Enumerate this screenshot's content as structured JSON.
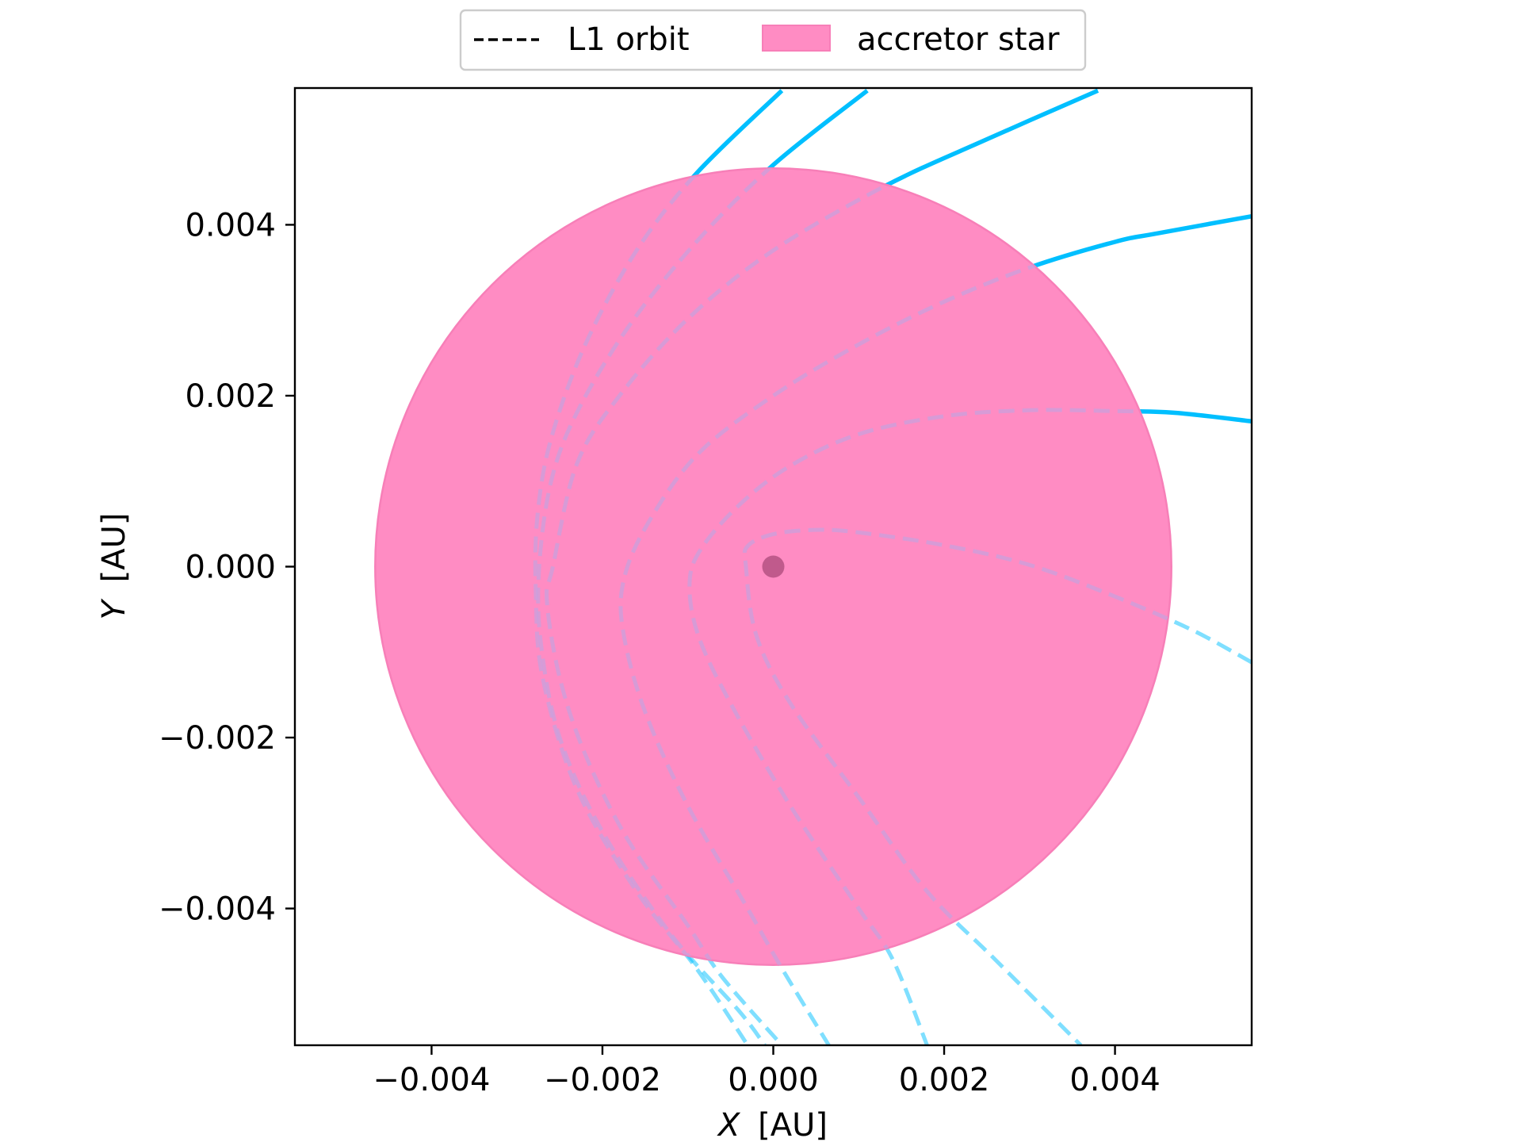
{
  "chart_data": {
    "type": "line",
    "xlabel_var": "X",
    "xlabel_unit": "[AU]",
    "ylabel_var": "Y",
    "ylabel_unit": "[AU]",
    "xlim": [
      -0.0056,
      0.0056
    ],
    "ylim": [
      -0.0056,
      0.0056
    ],
    "xticks": [
      -0.004,
      -0.002,
      0.0,
      0.002,
      0.004
    ],
    "xtick_labels": [
      "−0.004",
      "−0.002",
      "0.000",
      "0.002",
      "0.004"
    ],
    "yticks": [
      0.004,
      0.002,
      0.0,
      -0.002,
      -0.004
    ],
    "ytick_labels": [
      "0.004",
      "0.002",
      "0.000",
      "−0.002",
      "−0.004"
    ],
    "grid": false,
    "legend": {
      "placement": "top-center",
      "entries": [
        {
          "label": "L1 orbit",
          "style": "dashed-line",
          "color": "#000000"
        },
        {
          "label": "accretor star",
          "style": "patch",
          "color": "#ff8cc3"
        }
      ]
    },
    "accretor_star": {
      "center": [
        0.0,
        0.0
      ],
      "radius": 0.00466,
      "fill_color": "#ff8cc3",
      "edge_color": "#f77fb8"
    },
    "accretor_center_marker": {
      "x": 0.0,
      "y": 0.0,
      "color": "#c05a8c"
    },
    "orbit_color": "#00bfff",
    "series": [
      {
        "points": [
          [
            0.0056,
            -0.00112
          ],
          [
            0.0049,
            -0.00074
          ],
          [
            0.004,
            -0.00035
          ],
          [
            0.003,
            2e-05
          ],
          [
            0.002,
            0.00025
          ],
          [
            0.001,
            0.0004
          ],
          [
            0.0005,
            0.00043
          ],
          [
            0.0,
            0.00038
          ],
          [
            -0.0003,
            0.00024
          ],
          [
            -0.00032,
            0.0
          ],
          [
            -0.0002,
            -0.0008
          ],
          [
            0.0002,
            -0.0016
          ],
          [
            0.001,
            -0.0027
          ],
          [
            0.0018,
            -0.0038
          ],
          [
            0.0026,
            -0.0046
          ],
          [
            0.0036,
            -0.0056
          ]
        ]
      },
      {
        "points": [
          [
            0.0056,
            0.0017
          ],
          [
            0.0047,
            0.0018
          ],
          [
            0.004,
            0.00182
          ],
          [
            0.003,
            0.00183
          ],
          [
            0.002,
            0.00176
          ],
          [
            0.001,
            0.00155
          ],
          [
            0.0002,
            0.00118
          ],
          [
            -0.0004,
            0.00072
          ],
          [
            -0.00085,
            0.0002
          ],
          [
            -0.00098,
            -0.0002
          ],
          [
            -0.00088,
            -0.0008
          ],
          [
            -0.0005,
            -0.0016
          ],
          [
            0.0002,
            -0.0028
          ],
          [
            0.001,
            -0.004
          ],
          [
            0.0014,
            -0.0046
          ],
          [
            0.0018,
            -0.0056
          ]
        ]
      },
      {
        "points": [
          [
            0.0056,
            0.0041
          ],
          [
            0.0045,
            0.0039
          ],
          [
            0.004,
            0.0038
          ],
          [
            0.003,
            0.0035
          ],
          [
            0.002,
            0.0031
          ],
          [
            0.001,
            0.0026
          ],
          [
            0.0,
            0.002
          ],
          [
            -0.0009,
            0.0013
          ],
          [
            -0.0015,
            0.00045
          ],
          [
            -0.00176,
            -0.0002
          ],
          [
            -0.00175,
            -0.0008
          ],
          [
            -0.0015,
            -0.0017
          ],
          [
            -0.001,
            -0.0028
          ],
          [
            -0.0003,
            -0.004
          ],
          [
            0.0001,
            -0.0047
          ],
          [
            0.00065,
            -0.0056
          ]
        ]
      },
      {
        "points": [
          [
            0.0038,
            0.00557
          ],
          [
            0.0025,
            0.005
          ],
          [
            0.0013,
            0.00445
          ],
          [
            0.0,
            0.0037
          ],
          [
            -0.001,
            0.0029
          ],
          [
            -0.0018,
            0.002
          ],
          [
            -0.0023,
            0.0012
          ],
          [
            -0.00258,
            0.0
          ],
          [
            -0.00265,
            -0.0004
          ],
          [
            -0.0025,
            -0.0013
          ],
          [
            -0.0022,
            -0.0022
          ],
          [
            -0.0017,
            -0.0032
          ],
          [
            -0.001,
            -0.0042
          ],
          [
            -0.0006,
            -0.0048
          ],
          [
            0.0001,
            -0.0056
          ]
        ]
      },
      {
        "points": [
          [
            0.0011,
            0.00557
          ],
          [
            0.0,
            0.0047
          ],
          [
            -0.0009,
            0.0038
          ],
          [
            -0.0017,
            0.0028
          ],
          [
            -0.0023,
            0.0018
          ],
          [
            -0.0026,
            0.001
          ],
          [
            -0.00274,
            0.0
          ],
          [
            -0.00272,
            -0.0009
          ],
          [
            -0.0025,
            -0.002
          ],
          [
            -0.002,
            -0.0031
          ],
          [
            -0.0012,
            -0.0043
          ],
          [
            -0.0004,
            -0.0052
          ],
          [
            -0.0001,
            -0.0056
          ]
        ]
      },
      {
        "points": [
          [
            0.0001,
            0.00557
          ],
          [
            -0.0009,
            0.0046
          ],
          [
            -0.0016,
            0.0037
          ],
          [
            -0.0022,
            0.0026
          ],
          [
            -0.0026,
            0.0015
          ],
          [
            -0.00276,
            0.0006
          ],
          [
            -0.00278,
            -0.0003
          ],
          [
            -0.0027,
            -0.0013
          ],
          [
            -0.0023,
            -0.0026
          ],
          [
            -0.0016,
            -0.0038
          ],
          [
            -0.0009,
            -0.0047
          ],
          [
            -0.0003,
            -0.0056
          ]
        ]
      }
    ]
  }
}
